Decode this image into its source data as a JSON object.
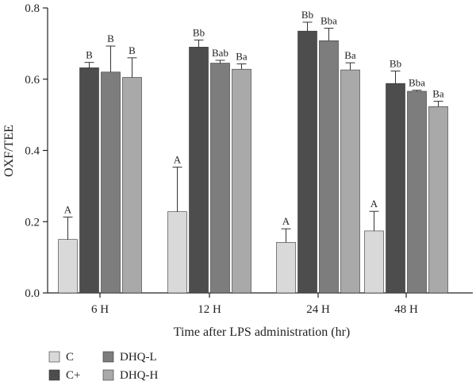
{
  "chart_data": {
    "type": "bar",
    "title": "",
    "xlabel": "Time after LPS administration (hr)",
    "ylabel": "OXF/TEE",
    "ylim": [
      0,
      0.8
    ],
    "yticks": [
      0.0,
      0.2,
      0.4,
      0.6,
      0.8
    ],
    "ytick_labels": [
      "0.0",
      "0.2",
      "0.4",
      "0.6",
      "0.8"
    ],
    "categories": [
      "6 H",
      "12 H",
      "24 H",
      "48 H"
    ],
    "legend_position": "bottom-left",
    "series": [
      {
        "name": "C",
        "color": "#d9d9d9",
        "values": [
          0.15,
          0.228,
          0.142,
          0.174
        ],
        "errors": [
          0.063,
          0.125,
          0.038,
          0.055
        ],
        "labels": [
          "A",
          "A",
          "A",
          "A"
        ]
      },
      {
        "name": "C+",
        "color": "#4d4d4d",
        "values": [
          0.632,
          0.69,
          0.735,
          0.588
        ],
        "errors": [
          0.015,
          0.02,
          0.025,
          0.035
        ],
        "labels": [
          "B",
          "Bb",
          "Bb",
          "Bb"
        ]
      },
      {
        "name": "DHQ-L",
        "color": "#7d7d7d",
        "values": [
          0.62,
          0.645,
          0.708,
          0.566
        ],
        "errors": [
          0.073,
          0.008,
          0.035,
          0.003
        ],
        "labels": [
          "B",
          "Bab",
          "Bba",
          "Bba"
        ]
      },
      {
        "name": "DHQ-H",
        "color": "#a9a9a9",
        "values": [
          0.605,
          0.628,
          0.626,
          0.523
        ],
        "errors": [
          0.055,
          0.015,
          0.02,
          0.015
        ],
        "labels": [
          "B",
          "Ba",
          "Ba",
          "Ba"
        ]
      }
    ]
  }
}
